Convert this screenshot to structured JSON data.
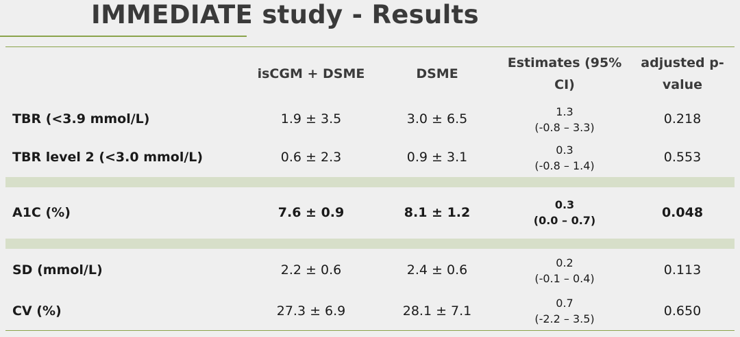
{
  "title": "IMMEDIATE study - Results",
  "table": {
    "headers": [
      "",
      "isCGM + DSME",
      "DSME",
      "Estimates (95% CI)",
      "adjusted p-value"
    ],
    "rows": [
      {
        "label": "TBR (<3.9 mmol/L)",
        "iscgm": "1.9 ± 3.5",
        "dsme": "3.0 ± 6.5",
        "estimate": "1.3",
        "ci": "(-0.8 – 3.3)",
        "p": "0.218",
        "bold": false
      },
      {
        "label": "TBR level 2 (<3.0 mmol/L)",
        "iscgm": "0.6 ± 2.3",
        "dsme": "0.9 ± 3.1",
        "estimate": "0.3",
        "ci": "(-0.8 – 1.4)",
        "p": "0.553",
        "bold": false
      },
      {
        "label": "A1C (%)",
        "iscgm": "7.6 ± 0.9",
        "dsme": "8.1 ± 1.2",
        "estimate": "0.3",
        "ci": "(0.0 – 0.7)",
        "p": "0.048",
        "bold": true
      },
      {
        "label": "SD (mmol/L)",
        "iscgm": "2.2 ± 0.6",
        "dsme": "2.4 ± 0.6",
        "estimate": "0.2",
        "ci": "(-0.1 – 0.4)",
        "p": "0.113",
        "bold": false
      },
      {
        "label": "CV (%)",
        "iscgm": "27.3 ± 6.9",
        "dsme": "28.1 ± 7.1",
        "estimate": "0.7",
        "ci": "(-2.2 – 3.5)",
        "p": "0.650",
        "bold": false
      }
    ]
  },
  "colors": {
    "accent": "#8aa34a",
    "band": "#d7dfc9",
    "background": "#efefef"
  }
}
